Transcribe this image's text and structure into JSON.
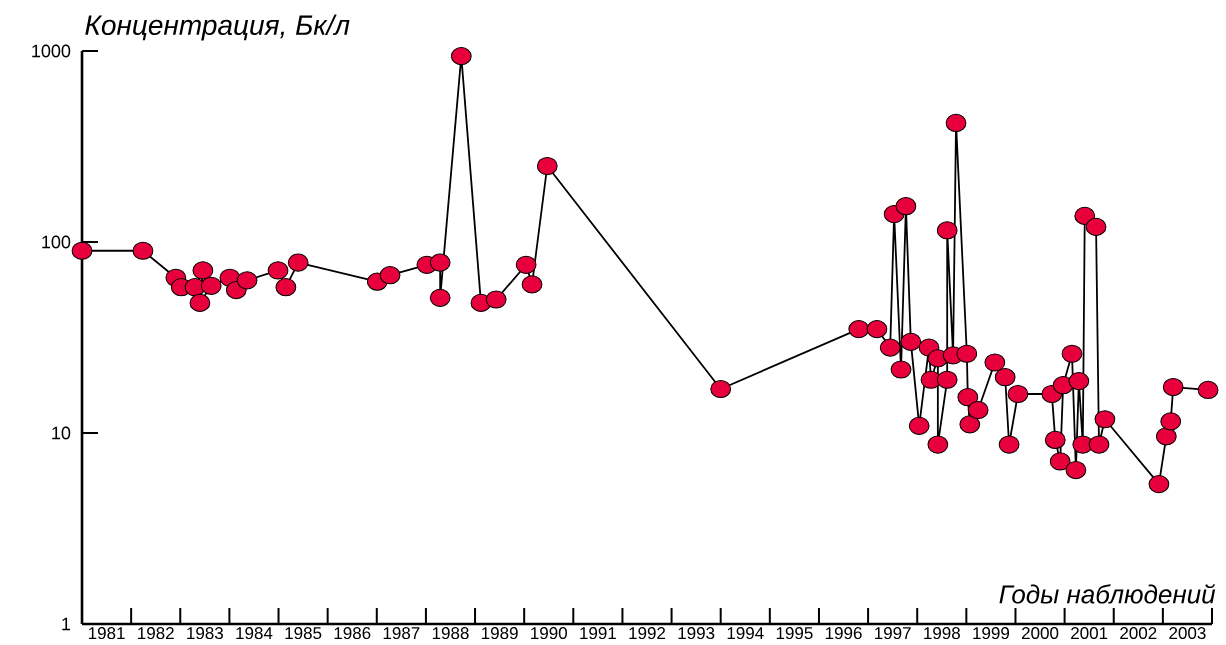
{
  "chart_data": {
    "type": "line",
    "xlabel": "Годы наблюдений",
    "ylabel": "Концентрация, Бк/л",
    "log": "y",
    "marker": "circle",
    "line_style": "solid",
    "ylim": [
      1,
      1000
    ],
    "yticks": [
      1,
      10,
      100,
      1000
    ],
    "xlim": [
      1981,
      2004
    ],
    "xticks": [
      {
        "value": 1981,
        "label": null
      },
      {
        "value": 1982,
        "label": null
      },
      {
        "value": 1983,
        "label": null
      },
      {
        "value": 1984,
        "label": null
      },
      {
        "value": 1985,
        "label": null
      },
      {
        "value": 1986,
        "label": null
      },
      {
        "value": 1987,
        "label": null
      },
      {
        "value": 1988,
        "label": null
      },
      {
        "value": 1989,
        "label": null
      },
      {
        "value": 1990,
        "label": null
      },
      {
        "value": 1991,
        "label": null
      },
      {
        "value": 1992,
        "label": null
      },
      {
        "value": 1993,
        "label": null
      },
      {
        "value": 1994,
        "label": null
      },
      {
        "value": 1995,
        "label": null
      },
      {
        "value": 1996,
        "label": null
      },
      {
        "value": 1997,
        "label": null
      },
      {
        "value": 1998,
        "label": null
      },
      {
        "value": 1999,
        "label": null
      },
      {
        "value": 2000,
        "label": null
      },
      {
        "value": 2001,
        "label": null
      },
      {
        "value": 2002,
        "label": null
      },
      {
        "value": 2003,
        "label": null
      },
      {
        "value": 2004,
        "label": null
      },
      {
        "value": 1981.5,
        "label": "1981"
      },
      {
        "value": 1982.5,
        "label": "1982"
      },
      {
        "value": 1983.5,
        "label": "1983"
      },
      {
        "value": 1984.5,
        "label": "1984"
      },
      {
        "value": 1985.5,
        "label": "1985"
      },
      {
        "value": 1986.5,
        "label": "1986"
      },
      {
        "value": 1987.5,
        "label": "1987"
      },
      {
        "value": 1988.5,
        "label": "1988"
      },
      {
        "value": 1989.5,
        "label": "1989"
      },
      {
        "value": 1990.5,
        "label": "1990"
      },
      {
        "value": 1991.5,
        "label": "1991"
      },
      {
        "value": 1992.5,
        "label": "1992"
      },
      {
        "value": 1993.5,
        "label": "1993"
      },
      {
        "value": 1994.5,
        "label": "1994"
      },
      {
        "value": 1995.5,
        "label": "1995"
      },
      {
        "value": 1996.5,
        "label": "1996"
      },
      {
        "value": 1997.5,
        "label": "1997"
      },
      {
        "value": 1998.5,
        "label": "1998"
      },
      {
        "value": 1999.5,
        "label": "1999"
      },
      {
        "value": 2000.5,
        "label": "2000"
      },
      {
        "value": 2001.5,
        "label": "2001"
      },
      {
        "value": 2002.5,
        "label": "2002"
      },
      {
        "value": 2003.5,
        "label": "2003"
      }
    ],
    "series": [
      {
        "color": "#e8003c",
        "x": [
          1981.0,
          1982.24,
          1982.91,
          1983.02,
          1983.3,
          1983.46,
          1983.4,
          1983.63,
          1984.01,
          1984.14,
          1984.36,
          1984.99,
          1985.15,
          1985.4,
          1987.01,
          1987.27,
          1988.02,
          1988.29,
          1988.29,
          1988.72,
          1989.12,
          1989.43,
          1990.04,
          1990.16,
          1990.47,
          1994.0,
          1996.81,
          1997.18,
          1997.45,
          1997.53,
          1997.67,
          1997.77,
          1997.87,
          1998.04,
          1998.24,
          1998.28,
          1998.42,
          1998.42,
          1998.61,
          1998.61,
          1998.73,
          1998.79,
          1999.01,
          1999.03,
          1999.07,
          1999.24,
          1999.58,
          1999.79,
          1999.87,
          2000.05,
          2000.74,
          2000.81,
          2000.91,
          2000.97,
          2001.15,
          2001.23,
          2001.29,
          2001.37,
          2001.41,
          2001.64,
          2001.7,
          2001.82,
          2002.92,
          2003.07,
          2003.16,
          2003.21,
          2003.92
        ],
        "values": [
          90,
          90,
          65,
          58,
          58,
          71,
          48,
          59,
          65,
          56,
          63,
          71,
          58,
          78,
          62,
          67,
          76,
          78,
          51,
          940,
          48,
          50,
          76,
          60,
          250,
          17,
          35,
          35,
          28,
          140,
          21.5,
          154,
          30,
          10.9,
          28,
          19,
          24.6,
          8.7,
          19,
          115,
          25.5,
          420,
          26,
          15.4,
          11.1,
          13.2,
          23.4,
          19.6,
          8.7,
          16,
          16,
          9.2,
          7.1,
          17.8,
          26,
          6.4,
          18.7,
          8.7,
          137,
          120,
          8.7,
          11.8,
          5.4,
          9.6,
          11.5,
          17.4,
          16.8
        ]
      }
    ]
  }
}
